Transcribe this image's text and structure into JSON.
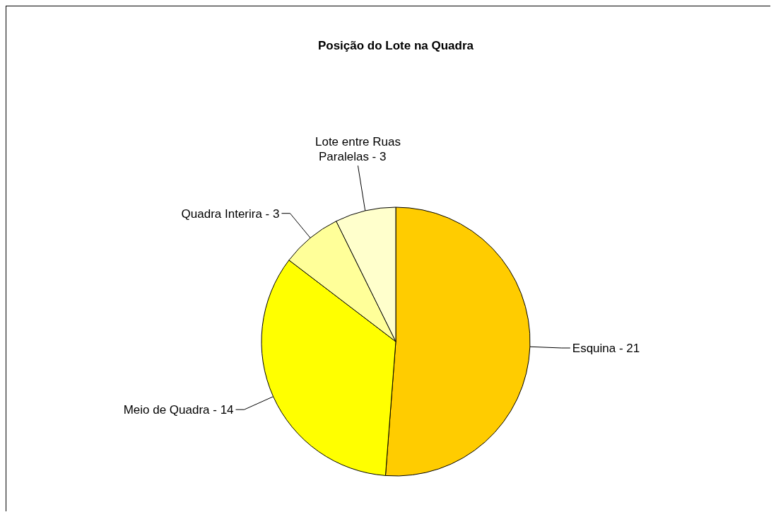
{
  "chart_data": {
    "type": "pie",
    "title": "Posição do Lote na Quadra",
    "categories": [
      "Esquina -",
      "Meio de Quadra -",
      "Quadra Interira -",
      "Lote entre Ruas Paralelas -"
    ],
    "values": [
      21,
      14,
      3,
      3
    ],
    "colors": [
      "#ffcc00",
      "#ffff00",
      "#ffff99",
      "#ffffcc"
    ],
    "data_labels": true,
    "legend": false
  }
}
